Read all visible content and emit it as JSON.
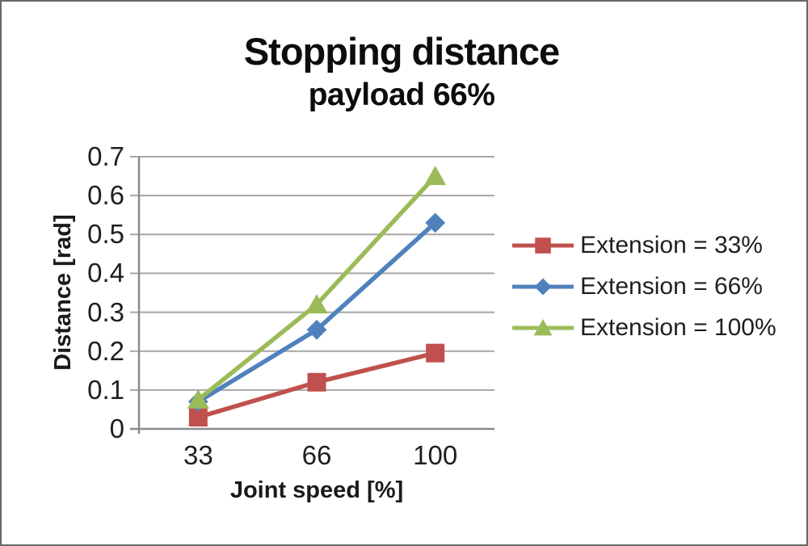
{
  "window": {
    "background": "#ffffff",
    "border_color": "#686868"
  },
  "chart_data": {
    "type": "line",
    "title": "Stopping distance",
    "subtitle": "payload 66%",
    "xlabel": "Joint speed [%]",
    "ylabel": "Distance [rad]",
    "categories": [
      "33",
      "66",
      "100"
    ],
    "series": [
      {
        "name": "Extension = 33%",
        "color": "#c0504d",
        "marker": "square",
        "values": [
          0.03,
          0.12,
          0.195
        ]
      },
      {
        "name": "Extension = 66%",
        "color": "#4f81bd",
        "marker": "diamond",
        "values": [
          0.07,
          0.255,
          0.53
        ]
      },
      {
        "name": "Extension = 100%",
        "color": "#9bbb59",
        "marker": "triangle",
        "values": [
          0.075,
          0.32,
          0.65
        ]
      }
    ],
    "ylim": [
      0,
      0.7
    ],
    "yticks": [
      "0",
      "0.1",
      "0.2",
      "0.3",
      "0.4",
      "0.5",
      "0.6",
      "0.7"
    ],
    "xticks": [
      "33",
      "66",
      "100"
    ],
    "grid": true,
    "legend_position": "right",
    "gridline_color": "#a6a6a6",
    "axis_color": "#8a8a8a",
    "text_color": "#1f1f1f"
  }
}
